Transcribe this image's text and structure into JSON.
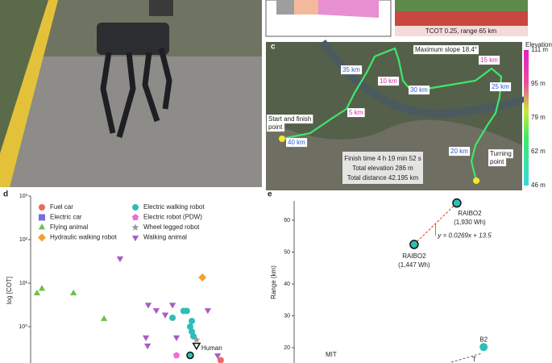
{
  "panel_b": {
    "caption": "TCOT 0.25, range 65 km"
  },
  "panel_c": {
    "label": "c",
    "elevation_title": "Elevation",
    "elevation_ticks": [
      "111 m",
      "95 m",
      "79 m",
      "62 m",
      "46 m"
    ],
    "annotations": [
      "Maximum slope 18.4°",
      "35 km",
      "10 km",
      "15 km",
      "30 km",
      "25 km",
      "5 km",
      "40 km",
      "20 km"
    ],
    "start": [
      "Start and finish",
      "point"
    ],
    "turn": [
      "Turning",
      "point"
    ],
    "info": [
      "Finish time 4 h 19 min 52 s",
      "Total elevation 286 m",
      "Total distance 42.195 km"
    ]
  },
  "chart_data": [
    {
      "type": "scatter",
      "label": "d",
      "ylabel": "log [COT]",
      "ylog": true,
      "xlim": [
        0,
        100
      ],
      "ylim": [
        0.1,
        1000
      ],
      "yticks": [
        {
          "value": 1000,
          "label": "10³"
        },
        {
          "value": 100,
          "label": "10²"
        },
        {
          "value": 10,
          "label": "10¹"
        },
        {
          "value": 1,
          "label": "10⁰"
        }
      ],
      "series": [
        {
          "name": "Fuel car",
          "color": "#ee6a5e",
          "marker": "circle",
          "x": [
            80.8
          ],
          "values": [
            0.17
          ]
        },
        {
          "name": "Electric car",
          "color": "#7a6fd6",
          "marker": "square",
          "x": [],
          "values": []
        },
        {
          "name": "Flying animal",
          "color": "#6cc04a",
          "marker": "triangle",
          "x": [
            2.7,
            4.8,
            18.2,
            31.2
          ],
          "values": [
            5.8,
            7.4,
            5.8,
            1.5
          ]
        },
        {
          "name": "Hydraulic walking robot",
          "color": "#f5a030",
          "marker": "diamond",
          "x": [
            73
          ],
          "values": [
            13.5
          ]
        },
        {
          "name": "Electric walking robot",
          "color": "#2fbdb8",
          "marker": "circle",
          "x": [
            65,
            66.4,
            68.5,
            67.8,
            68.5,
            69.2,
            60.3,
            67.8
          ],
          "values": [
            2.3,
            2.3,
            1.35,
            1.0,
            0.77,
            0.6,
            1.6,
            0.22
          ],
          "highlight": [
            7
          ]
        },
        {
          "name": "Electric robot (PDW)",
          "color": "#f26bd8",
          "marker": "pentagon",
          "x": [
            62
          ],
          "values": [
            0.22
          ]
        },
        {
          "name": "Wheel legged robot",
          "color": "#999999",
          "marker": "star",
          "x": [
            70.5
          ],
          "values": [
            0.5
          ]
        },
        {
          "name": "Walking animal",
          "color": "#a85bc6",
          "marker": "down",
          "x": [
            38,
            50,
            53.4,
            57.2,
            60.3,
            75.3,
            49,
            49.7,
            62,
            79.5
          ],
          "values": [
            37,
            3.2,
            2.4,
            1.9,
            3.2,
            2.4,
            0.57,
            0.37,
            0.57,
            0.22
          ]
        }
      ],
      "annotations": [
        {
          "text": "Human",
          "x": 70.5,
          "y": 0.375
        }
      ]
    },
    {
      "type": "scatter",
      "label": "e",
      "ylabel": "Range (km)",
      "xlim": [
        91,
        2960
      ],
      "ylim": [
        15,
        66
      ],
      "yticks": [
        20,
        30,
        40,
        50,
        60
      ],
      "points": [
        {
          "label": "RAIBO2",
          "sublabel": "(1,930 Wh)",
          "x": 1930,
          "y": 65.4,
          "color": "#2fbdb8"
        },
        {
          "label": "RAIBO2",
          "sublabel": "(1,447 Wh)",
          "x": 1447,
          "y": 52.4,
          "color": "#2fbdb8"
        },
        {
          "label": "B2",
          "x": 2233,
          "y": 20.2,
          "color": "#2fbdb8"
        }
      ],
      "fit": {
        "label": "y = 0.0269x + 13.5",
        "slope": 0.0269,
        "intercept": 13.5,
        "x": [
          1447,
          1930
        ],
        "color": "#e8543f"
      },
      "texts": [
        "MIT",
        "T"
      ]
    }
  ]
}
